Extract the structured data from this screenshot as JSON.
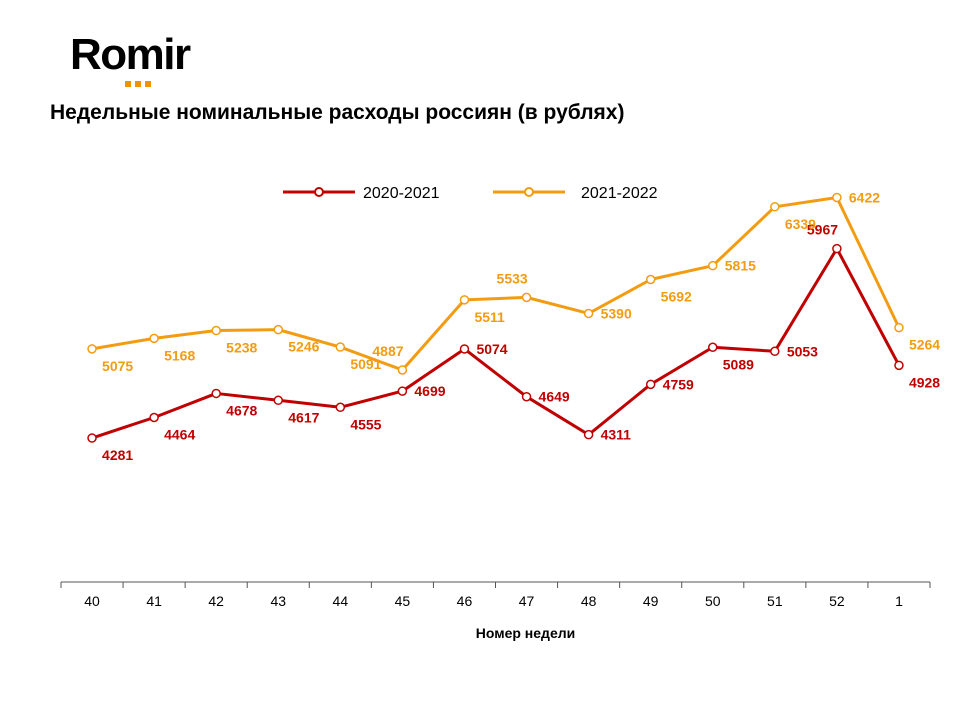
{
  "brand": {
    "name": "Romir",
    "accent": "#f39200"
  },
  "chart_data": {
    "type": "line",
    "title": "Недельные номинальные расходы россиян (в рублях)",
    "xlabel": "Номер недели",
    "ylabel": "",
    "categories": [
      "40",
      "41",
      "42",
      "43",
      "44",
      "45",
      "46",
      "47",
      "48",
      "49",
      "50",
      "51",
      "52",
      "1"
    ],
    "ylim": [
      3000,
      6800
    ],
    "grid": false,
    "legend_position": "top",
    "series": [
      {
        "name": "2020-2021",
        "color": "#c00000",
        "values": [
          4281,
          4464,
          4678,
          4617,
          4555,
          4699,
          5074,
          4649,
          4311,
          4759,
          5089,
          5053,
          5967,
          4928
        ],
        "label_positions": [
          "below",
          "below",
          "below",
          "below",
          "below",
          "right",
          "right",
          "right",
          "right",
          "right",
          "below",
          "right",
          "above",
          "below"
        ]
      },
      {
        "name": "2021-2022",
        "color": "#f39c12",
        "values": [
          5075,
          5168,
          5238,
          5246,
          5091,
          4887,
          5511,
          5533,
          5390,
          5692,
          5815,
          6339,
          6422,
          5264
        ],
        "label_positions": [
          "below",
          "below",
          "below",
          "below",
          "below",
          "above",
          "below",
          "above",
          "right",
          "below",
          "right",
          "below",
          "right",
          "below"
        ]
      }
    ]
  }
}
